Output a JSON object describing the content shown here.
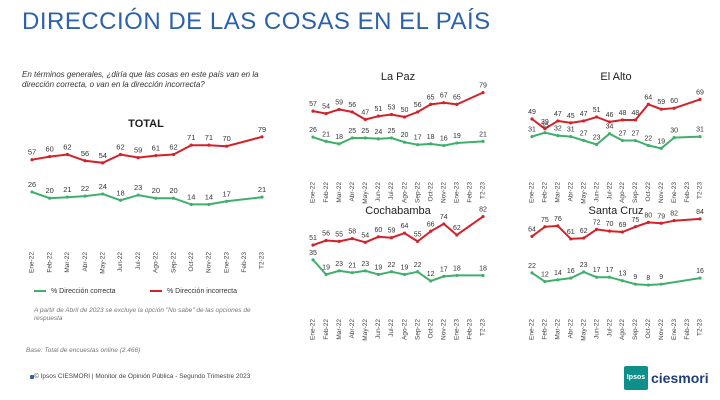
{
  "page": {
    "title": "DIRECCIÓN DE LAS COSAS EN EL PAÍS",
    "question": "En términos generales, ¿diría que las cosas en este país van en la dirección correcta, o van en la dirección incorrecta?",
    "note": "A partir de Abril de 2023 se excluye la opción \"No sabe\" de las opciones de respuesta",
    "base": "Base: Total de encuestas online (2.466)",
    "footer": "© Ipsos CIESMORI | Monitor de Opinión Pública - Segundo Trimestre 2023",
    "logo_badge": "Ipsos",
    "logo_text": "ciesmori",
    "legend_correct": "% Dirección correcta",
    "legend_incorrect": "% Dirección incorrecta",
    "colors": {
      "correct": "#3fb06b",
      "incorrect": "#d42128",
      "title": "#2c62ac"
    }
  },
  "chart_data": [
    {
      "type": "line",
      "title": "TOTAL",
      "categories": [
        "Ene-22",
        "Feb-22",
        "Mar-22",
        "Abr-22",
        "May-22",
        "Jun-22",
        "Jul-22",
        "Ago-22",
        "Sep-22",
        "Oct-22",
        "Nov-22",
        "Ene-23",
        "Feb-23",
        "T2-23"
      ],
      "series": [
        {
          "name": "% Dirección incorrecta",
          "values": [
            57,
            60,
            62,
            56,
            54,
            62,
            59,
            61,
            62,
            71,
            71,
            70,
            null,
            79
          ]
        },
        {
          "name": "% Dirección correcta",
          "values": [
            26,
            20,
            21,
            22,
            24,
            18,
            23,
            20,
            20,
            14,
            14,
            17,
            null,
            21
          ]
        }
      ]
    },
    {
      "type": "line",
      "title": "La Paz",
      "categories": [
        "Ene-22",
        "Feb-22",
        "Mar-22",
        "Abr-22",
        "May-22",
        "Jun-22",
        "Jul-22",
        "Ago-22",
        "Sep-22",
        "Oct-22",
        "Nov-22",
        "Ene-23",
        "Feb-23",
        "T2-23"
      ],
      "series": [
        {
          "name": "% Dirección incorrecta",
          "values": [
            57,
            54,
            59,
            56,
            47,
            51,
            53,
            50,
            56,
            65,
            67,
            65,
            null,
            79
          ]
        },
        {
          "name": "% Dirección correcta",
          "values": [
            26,
            21,
            18,
            25,
            25,
            24,
            25,
            20,
            17,
            18,
            16,
            19,
            null,
            21
          ]
        }
      ]
    },
    {
      "type": "line",
      "title": "El Alto",
      "categories": [
        "Ene-22",
        "Feb-22",
        "Mar-22",
        "Abr-22",
        "May-22",
        "Jun-22",
        "Jul-22",
        "Ago-22",
        "Sep-22",
        "Oct-22",
        "Nov-22",
        "Ene-23",
        "Feb-23",
        "T2-23"
      ],
      "series": [
        {
          "name": "% Dirección incorrecta",
          "values": [
            49,
            39,
            47,
            45,
            47,
            51,
            46,
            48,
            48,
            64,
            59,
            60,
            null,
            69
          ]
        },
        {
          "name": "% Dirección correcta",
          "values": [
            31,
            35,
            32,
            31,
            27,
            23,
            34,
            27,
            27,
            22,
            19,
            30,
            null,
            31
          ]
        }
      ]
    },
    {
      "type": "line",
      "title": "Cochabamba",
      "categories": [
        "Ene-22",
        "Feb-22",
        "Mar-22",
        "Abr-22",
        "May-22",
        "Jun-22",
        "Jul-22",
        "Ago-22",
        "Sep-22",
        "Oct-22",
        "Nov-22",
        "Ene-23",
        "Feb-23",
        "T2-23"
      ],
      "series": [
        {
          "name": "% Dirección incorrecta",
          "values": [
            51,
            56,
            55,
            58,
            54,
            60,
            59,
            64,
            55,
            66,
            74,
            62,
            null,
            82
          ]
        },
        {
          "name": "% Dirección correcta",
          "values": [
            35,
            19,
            23,
            21,
            23,
            19,
            22,
            19,
            22,
            12,
            17,
            18,
            null,
            18
          ]
        }
      ]
    },
    {
      "type": "line",
      "title": "Santa Cruz",
      "categories": [
        "Ene-22",
        "Feb-22",
        "Mar-22",
        "Abr-22",
        "May-22",
        "Jun-22",
        "Jul-22",
        "Ago-22",
        "Sep-22",
        "Oct-22",
        "Nov-22",
        "Ene-23",
        "Feb-23",
        "T2-23"
      ],
      "series": [
        {
          "name": "% Dirección incorrecta",
          "values": [
            64,
            75,
            76,
            61,
            62,
            72,
            70,
            69,
            75,
            80,
            79,
            82,
            null,
            84
          ]
        },
        {
          "name": "% Dirección correcta",
          "values": [
            22,
            12,
            14,
            16,
            23,
            17,
            17,
            13,
            9,
            8,
            9,
            null,
            null,
            16
          ]
        }
      ]
    }
  ]
}
